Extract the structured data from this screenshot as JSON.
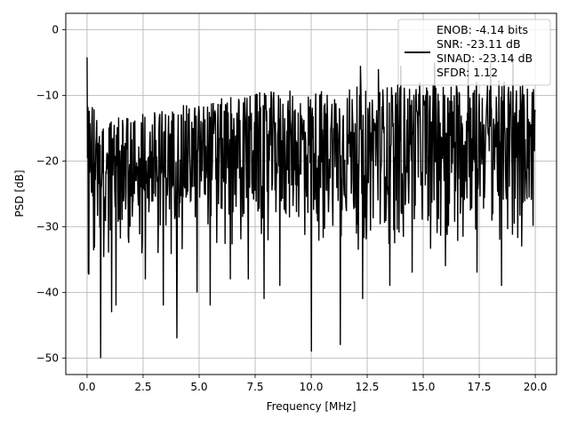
{
  "chart_data": {
    "type": "line",
    "xlabel": "Frequency [MHz]",
    "ylabel": "PSD [dB]",
    "xlim": [
      -0.95,
      20.95
    ],
    "ylim": [
      -52.5,
      2.5
    ],
    "xticks": [
      0.0,
      2.5,
      5.0,
      7.5,
      10.0,
      12.5,
      15.0,
      17.5,
      20.0
    ],
    "xtick_labels": [
      "0.0",
      "2.5",
      "5.0",
      "7.5",
      "10.0",
      "12.5",
      "15.0",
      "17.5",
      "20.0"
    ],
    "yticks": [
      0,
      -10,
      -20,
      -30,
      -40,
      -50
    ],
    "ytick_labels": [
      "0",
      "−10",
      "−20",
      "−30",
      "−40",
      "−50"
    ],
    "grid": true,
    "legend_placement": "top-right",
    "series": [
      {
        "color": "#000000",
        "legend_lines": [
          "ENOB: -4.14 bits",
          "SNR: -23.11 dB",
          "SINAD: -23.14 dB",
          "SFDR: 1.12"
        ],
        "x_range": [
          0.0,
          20.0
        ],
        "n_points": 1024,
        "envelope": {
          "x": [
            0.0,
            0.1,
            0.5,
            2.5,
            5.0,
            7.5,
            10.0,
            12.5,
            15.0,
            17.5,
            20.0
          ],
          "upper": [
            -4.2,
            -8.5,
            -14,
            -12.5,
            -11,
            -9.5,
            -9,
            -8.5,
            -8,
            -7.5,
            -8
          ],
          "lower": [
            -37,
            -33,
            -31,
            -31,
            -30,
            -30,
            -30,
            -30,
            -29.5,
            -29,
            -28
          ]
        },
        "dips": [
          {
            "x": 0.05,
            "y": -37
          },
          {
            "x": 0.6,
            "y": -50
          },
          {
            "x": 1.1,
            "y": -43
          },
          {
            "x": 1.3,
            "y": -42
          },
          {
            "x": 2.6,
            "y": -38
          },
          {
            "x": 3.4,
            "y": -42
          },
          {
            "x": 4.0,
            "y": -47
          },
          {
            "x": 4.9,
            "y": -40
          },
          {
            "x": 5.5,
            "y": -42
          },
          {
            "x": 6.4,
            "y": -38
          },
          {
            "x": 7.2,
            "y": -38
          },
          {
            "x": 7.9,
            "y": -41
          },
          {
            "x": 8.6,
            "y": -39
          },
          {
            "x": 10.0,
            "y": -49
          },
          {
            "x": 11.3,
            "y": -48
          },
          {
            "x": 12.3,
            "y": -41
          },
          {
            "x": 13.5,
            "y": -39
          },
          {
            "x": 14.5,
            "y": -37
          },
          {
            "x": 16.0,
            "y": -36
          },
          {
            "x": 17.4,
            "y": -37
          },
          {
            "x": 18.5,
            "y": -39
          },
          {
            "x": 19.4,
            "y": -33
          }
        ],
        "peaks": [
          {
            "x": 0.0,
            "y": -4.2
          },
          {
            "x": 12.2,
            "y": -5.5
          },
          {
            "x": 13.0,
            "y": -6
          },
          {
            "x": 14.0,
            "y": -5.5
          },
          {
            "x": 15.5,
            "y": -5
          },
          {
            "x": 17.0,
            "y": -4.5
          },
          {
            "x": 18.0,
            "y": -5
          },
          {
            "x": 19.0,
            "y": -4.5
          }
        ]
      }
    ]
  }
}
